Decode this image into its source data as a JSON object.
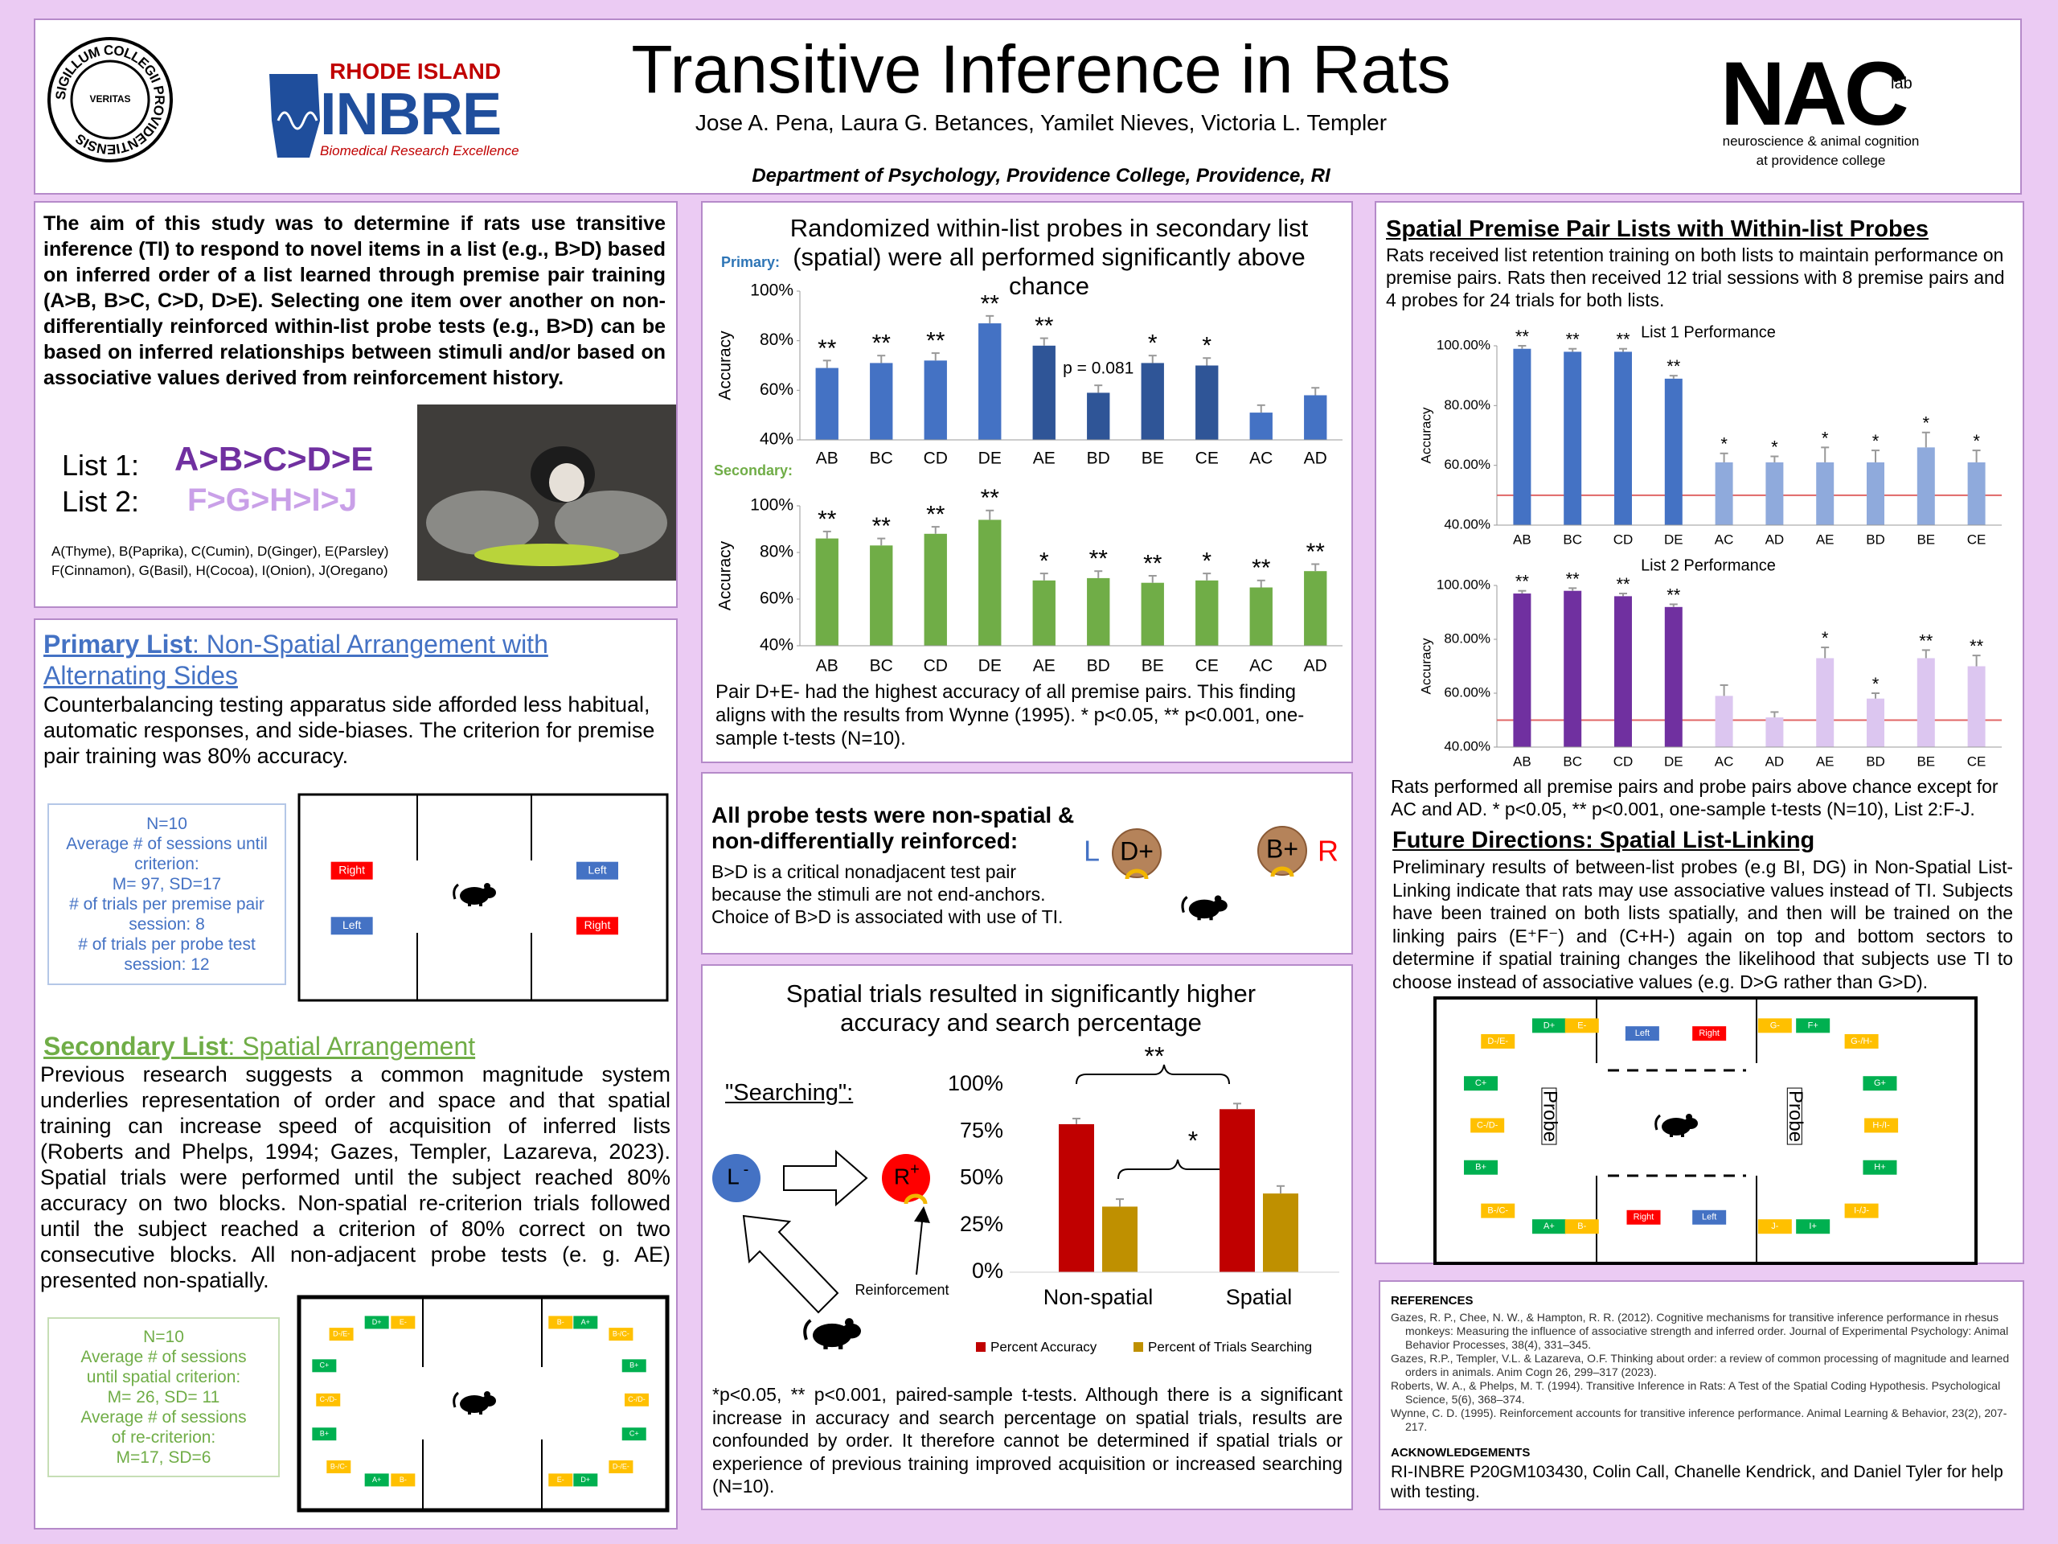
{
  "header": {
    "title": "Transitive Inference in Rats",
    "authors": "Jose A. Pena, Laura G. Betances, Yamilet Nieves, Victoria L. Templer",
    "department": "Department of Psychology, Providence College, Providence, RI",
    "seal_ring": "SIGILLUM COLLEGII PROVIDENTIENSIS",
    "seal_motto": "VERITAS",
    "inbre_state": "RHODE ISLAND",
    "inbre_name": "INBRE",
    "inbre_tagline": "Biomedical Research Excellence",
    "nac_name": "NAC",
    "nac_lab": "lab",
    "nac_line1": "neuroscience & animal cognition",
    "nac_line2": "at providence college"
  },
  "intro": {
    "aim": "The aim of this study was to determine if rats use transitive inference (TI) to respond to novel items in a list (e.g., B>D) based on inferred order of a list learned through premise pair training (A>B, B>C, C>D, D>E). Selecting one item over another on non-differentially reinforced within-list probe tests (e.g., B>D) can be based on inferred relationships between stimuli and/or based on associative values derived from reinforcement history.",
    "list1_label": "List 1:",
    "list1": "A>B>C>D>E",
    "list2_label": "List 2:",
    "list2": "F>G>H>I>J",
    "key1": "A(Thyme), B(Paprika), C(Cumin), D(Ginger), E(Parsley)",
    "key2": "F(Cinnamon), G(Basil), H(Cocoa), I(Onion), J(Oregano)"
  },
  "primary_list": {
    "heading_bold": "Primary List",
    "heading_rest": ": Non-Spatial Arrangement with Alternating Sides",
    "body": "Counterbalancing testing apparatus side afforded less habitual, automatic responses, and side-biases. The criterion for premise pair training was 80% accuracy.",
    "stats": [
      "N=10",
      "Average # of sessions until criterion:",
      "M= 97, SD=17",
      "# of trials per premise pair session: 8",
      "# of trials per probe test session: 12"
    ],
    "apparatus": [
      {
        "label": "Right",
        "color": "#ff0000"
      },
      {
        "label": "Left",
        "color": "#4472c4"
      },
      {
        "label": "Left",
        "color": "#4472c4"
      },
      {
        "label": "Right",
        "color": "#ff0000"
      }
    ]
  },
  "secondary_list": {
    "heading_bold": "Secondary List",
    "heading_rest": ": Spatial Arrangement ",
    "body": "Previous research suggests a common magnitude system underlies representation of order and space and that spatial training can increase speed of acquisition of inferred lists (Roberts and Phelps, 1994; Gazes, Templer, Lazareva, 2023). Spatial trials were performed until the subject reached 80% accuracy on two blocks. Non-spatial re-criterion trials followed until the subject reached a criterion of 80% correct on two consecutive blocks. All non-adjacent probe tests (e. g. AE) presented non-spatially.",
    "stats": [
      "N=10",
      "Average # of sessions",
      "until spatial criterion:",
      "M= 26, SD= 11",
      "Average # of sessions",
      "of re-criterion:",
      "M=17, SD=6"
    ],
    "apparatus": [
      {
        "label": "D-/E-",
        "color": "#ffc000"
      },
      {
        "label": "D+",
        "color": "#00b050"
      },
      {
        "label": "E-",
        "color": "#ffc000"
      },
      {
        "label": "C+",
        "color": "#00b050"
      },
      {
        "label": "C-/D-",
        "color": "#ffc000"
      },
      {
        "label": "B+",
        "color": "#00b050"
      },
      {
        "label": "B-/C-",
        "color": "#ffc000"
      },
      {
        "label": "A+",
        "color": "#00b050"
      },
      {
        "label": "B-",
        "color": "#ffc000"
      },
      {
        "label": "B-",
        "color": "#ffc000"
      },
      {
        "label": "A+",
        "color": "#00b050"
      },
      {
        "label": "B-/C-",
        "color": "#ffc000"
      },
      {
        "label": "B+",
        "color": "#00b050"
      },
      {
        "label": "C-/D-",
        "color": "#ffc000"
      },
      {
        "label": "C+",
        "color": "#00b050"
      },
      {
        "label": "D-/E-",
        "color": "#ffc000"
      },
      {
        "label": "E-",
        "color": "#ffc000"
      },
      {
        "label": "D+",
        "color": "#00b050"
      }
    ]
  },
  "probe_box": {
    "title": "Randomized within-list probes in secondary list (spatial) were all performed significantly above chance",
    "caption": "Pair D+E- had the highest accuracy of all premise pairs. This finding aligns with the results from Wynne (1995). * p<0.05, ** p<0.001, one-sample t-tests (N=10)."
  },
  "probe_tests": {
    "heading": "All probe tests were non-spatial & non-differentially reinforced:",
    "body": "B>D is a critical nonadjacent test pair because the stimuli are not end-anchors. Choice of B>D is associated with use of TI.",
    "left": "L",
    "left_item": "D+",
    "right_item": "B+",
    "right": "R"
  },
  "spatial_box": {
    "searching": "\"Searching\":",
    "l": "L",
    "l_sup": "-",
    "r": "R",
    "r_sup": "+",
    "reinforcement": "Reinforcement",
    "caption": "*p<0.05, ** p<0.001, paired-sample t-tests. Although there is a significant increase in accuracy and search percentage on spatial trials, results are confounded by order. It therefore cannot be determined if spatial trials or experience of previous training improved acquisition or increased searching (N=10)."
  },
  "right_panel": {
    "heading": "Spatial Premise Pair Lists with Within-list Probes",
    "intro": "Rats received list retention training on both lists to maintain performance on premise pairs. Rats then received 12 trial sessions with 8 premise pairs and 4 probes for 24 trials for both lists.",
    "caption": "Rats performed all premise pairs and probe pairs above chance except for AC and AD. * p<0.05, ** p<0.001, one-sample t-tests (N=10), List 2:F-J.",
    "future_heading": "Future Directions: Spatial List-Linking",
    "future_body": "Preliminary results of between-list probes (e.g BI, DG) in Non-Spatial List-Linking indicate that rats may use associative values instead of TI. Subjects have been trained on both lists spatially, and then will be trained on the linking pairs (E⁺F⁻) and (C+H-) again on top and bottom sectors to determine if spatial training changes the likelihood that subjects use TI to choose instead of associative values (e.g. D>G rather than G>D).",
    "apparatus": [
      {
        "label": "D-/E-",
        "color": "#ffc000"
      },
      {
        "label": "D+",
        "color": "#00b050"
      },
      {
        "label": "E-",
        "color": "#ffc000"
      },
      {
        "label": "Left",
        "color": "#4472c4"
      },
      {
        "label": "Right",
        "color": "#ff0000"
      },
      {
        "label": "G-",
        "color": "#ffc000"
      },
      {
        "label": "F+",
        "color": "#00b050"
      },
      {
        "label": "G-/H-",
        "color": "#ffc000"
      },
      {
        "label": "C+",
        "color": "#00b050"
      },
      {
        "label": "G+",
        "color": "#00b050"
      },
      {
        "label": "C-/D-",
        "color": "#ffc000"
      },
      {
        "label": "Probe",
        "color": "#ffffff"
      },
      {
        "label": "Probe",
        "color": "#ffffff"
      },
      {
        "label": "H-/I-",
        "color": "#ffc000"
      },
      {
        "label": "B+",
        "color": "#00b050"
      },
      {
        "label": "H+",
        "color": "#00b050"
      },
      {
        "label": "B-/C-",
        "color": "#ffc000"
      },
      {
        "label": "I-/J-",
        "color": "#ffc000"
      },
      {
        "label": "A+",
        "color": "#00b050"
      },
      {
        "label": "B-",
        "color": "#ffc000"
      },
      {
        "label": "Right",
        "color": "#ff0000"
      },
      {
        "label": "Left",
        "color": "#4472c4"
      },
      {
        "label": "J-",
        "color": "#ffc000"
      },
      {
        "label": "I+",
        "color": "#00b050"
      }
    ]
  },
  "references": {
    "heading": "REFERENCES",
    "items": [
      "Gazes, R. P., Chee, N. W., & Hampton, R. R. (2012). Cognitive mechanisms for transitive inference performance in rhesus monkeys: Measuring the influence of associative strength and inferred order. Journal of Experimental Psychology: Animal Behavior Processes, 38(4), 331–345.",
      "Gazes, R.P., Templer, V.L. & Lazareva, O.F. Thinking about order: a review of common processing of magnitude and learned orders in animals. Anim Cogn 26, 299–317 (2023).",
      "Roberts, W. A., & Phelps, M. T. (1994). Transitive Inference in Rats: A Test of the Spatial Coding Hypothesis. Psychological Science, 5(6), 368–374.",
      "Wynne, C. D. (1995). Reinforcement accounts for transitive inference performance. Animal Learning & Behavior, 23(2), 207-217."
    ],
    "ack_heading": "ACKNOWLEDGEMENTS",
    "ack": "RI-INBRE P20GM103430, Colin Call, Chanelle Kendrick, and Daniel Tyler for help with testing."
  },
  "chart_data": [
    {
      "type": "bar",
      "title": "Primary:",
      "ylabel": "Accuracy",
      "categories": [
        "AB",
        "BC",
        "CD",
        "DE",
        "AE",
        "BD",
        "BE",
        "CE",
        "AC",
        "AD"
      ],
      "values": [
        69,
        71,
        72,
        87,
        78,
        59,
        71,
        70,
        51,
        58
      ],
      "errors": [
        3,
        3,
        3,
        3,
        3,
        3,
        3,
        3,
        3,
        3
      ],
      "annotations": [
        "**",
        "**",
        "**",
        "**",
        "**",
        "p = 0.081",
        "*",
        "*",
        null,
        null
      ],
      "colors": [
        "#4472c4",
        "#4472c4",
        "#4472c4",
        "#4472c4",
        "#2f5597",
        "#2f5597",
        "#2f5597",
        "#2f5597",
        "#4472c4",
        "#4472c4"
      ],
      "ylim": [
        40,
        100
      ],
      "yticks": [
        {
          "value": 40,
          "label": "40%"
        },
        {
          "value": 60,
          "label": "60%"
        },
        {
          "value": 80,
          "label": "80%"
        },
        {
          "value": 100,
          "label": "100%"
        }
      ]
    },
    {
      "type": "bar",
      "title": "Secondary:",
      "ylabel": "Accuracy",
      "categories": [
        "AB",
        "BC",
        "CD",
        "DE",
        "AE",
        "BD",
        "BE",
        "CE",
        "AC",
        "AD"
      ],
      "values": [
        86,
        83,
        88,
        94,
        68,
        69,
        67,
        68,
        65,
        72
      ],
      "errors": [
        3,
        3,
        3,
        4,
        3,
        3,
        3,
        3,
        3,
        3
      ],
      "annotations": [
        "**",
        "**",
        "**",
        "**",
        "*",
        "**",
        "**",
        "*",
        "**",
        "**"
      ],
      "colors": [
        "#70ad47",
        "#70ad47",
        "#70ad47",
        "#70ad47",
        "#70ad47",
        "#70ad47",
        "#70ad47",
        "#70ad47",
        "#70ad47",
        "#70ad47"
      ],
      "ylim": [
        40,
        100
      ],
      "yticks": [
        {
          "value": 40,
          "label": "40%"
        },
        {
          "value": 60,
          "label": "60%"
        },
        {
          "value": 80,
          "label": "80%"
        },
        {
          "value": 100,
          "label": "100%"
        }
      ]
    },
    {
      "type": "bar",
      "title": "List 1 Performance",
      "ylabel": "Accuracy",
      "categories": [
        "AB",
        "BC",
        "CD",
        "DE",
        "AC",
        "AD",
        "AE",
        "BD",
        "BE",
        "CE"
      ],
      "values": [
        99,
        98,
        98,
        89,
        61,
        61,
        61,
        61,
        66,
        61
      ],
      "errors": [
        1,
        1,
        1,
        1,
        3,
        2,
        5,
        4,
        5,
        4
      ],
      "annotations": [
        "**",
        "**",
        "**",
        "**",
        "*",
        "*",
        "*",
        "*",
        "*",
        "*"
      ],
      "colors": [
        "#4472c4",
        "#4472c4",
        "#4472c4",
        "#4472c4",
        "#8faadc",
        "#8faadc",
        "#8faadc",
        "#8faadc",
        "#8faadc",
        "#8faadc"
      ],
      "hline": 50,
      "ylim": [
        40,
        100
      ],
      "yticks": [
        {
          "value": 40,
          "label": "40.00%"
        },
        {
          "value": 60,
          "label": "60.00%"
        },
        {
          "value": 80,
          "label": "80.00%"
        },
        {
          "value": 100,
          "label": "100.00%"
        }
      ]
    },
    {
      "type": "bar",
      "title": "List 2 Performance",
      "ylabel": "Accuracy",
      "categories": [
        "AB",
        "BC",
        "CD",
        "DE",
        "AC",
        "AD",
        "AE",
        "BD",
        "BE",
        "CE"
      ],
      "values": [
        97,
        98,
        96,
        92,
        59,
        51,
        73,
        58,
        73,
        70
      ],
      "errors": [
        1,
        1,
        1,
        1,
        4,
        2,
        4,
        2,
        3,
        4
      ],
      "annotations": [
        "**",
        "**",
        "**",
        "**",
        null,
        null,
        "*",
        "*",
        "**",
        "**"
      ],
      "colors": [
        "#7030a0",
        "#7030a0",
        "#7030a0",
        "#7030a0",
        "#dcc6f0",
        "#dcc6f0",
        "#dcc6f0",
        "#dcc6f0",
        "#dcc6f0",
        "#dcc6f0"
      ],
      "hline": 50,
      "ylim": [
        40,
        100
      ],
      "yticks": [
        {
          "value": 40,
          "label": "40.00%"
        },
        {
          "value": 60,
          "label": "60.00%"
        },
        {
          "value": 80,
          "label": "80.00%"
        },
        {
          "value": 100,
          "label": "100.00%"
        }
      ]
    },
    {
      "type": "grouped_bar",
      "title": "Spatial trials resulted in significantly higher accuracy and search percentage",
      "categories": [
        "Non-spatial",
        "Spatial"
      ],
      "series": [
        {
          "name": "Percent Accuracy",
          "color": "#c00000",
          "values": [
            79,
            87
          ],
          "errors": [
            3,
            3
          ]
        },
        {
          "name": "Percent of Trials Searching",
          "color": "#bf9000",
          "values": [
            35,
            42
          ],
          "errors": [
            4,
            4
          ]
        }
      ],
      "annotations": [
        "**",
        "*"
      ],
      "ylim": [
        0,
        100
      ],
      "yticks": [
        {
          "value": 0,
          "label": "0%"
        },
        {
          "value": 25,
          "label": "25%"
        },
        {
          "value": 50,
          "label": "50%"
        },
        {
          "value": 75,
          "label": "75%"
        },
        {
          "value": 100,
          "label": "100%"
        }
      ]
    }
  ]
}
